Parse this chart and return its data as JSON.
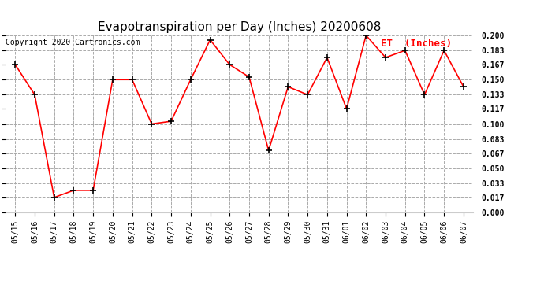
{
  "title": "Evapotranspiration per Day (Inches) 20200608",
  "copyright": "Copyright 2020 Cartronics.com",
  "legend_label": "ET  (Inches)",
  "dates": [
    "05/15",
    "05/16",
    "05/17",
    "05/18",
    "05/19",
    "05/20",
    "05/21",
    "05/22",
    "05/23",
    "05/24",
    "05/25",
    "05/26",
    "05/27",
    "05/28",
    "05/29",
    "05/30",
    "05/31",
    "06/01",
    "06/02",
    "06/03",
    "06/04",
    "06/05",
    "06/06",
    "06/07"
  ],
  "values": [
    0.167,
    0.133,
    0.017,
    0.025,
    0.025,
    0.15,
    0.15,
    0.1,
    0.103,
    0.15,
    0.195,
    0.167,
    0.153,
    0.07,
    0.142,
    0.133,
    0.175,
    0.117,
    0.2,
    0.175,
    0.183,
    0.133,
    0.183,
    0.142
  ],
  "ylim": [
    0.0,
    0.2
  ],
  "yticks": [
    0.0,
    0.017,
    0.033,
    0.05,
    0.067,
    0.083,
    0.1,
    0.117,
    0.133,
    0.15,
    0.167,
    0.183,
    0.2
  ],
  "line_color": "red",
  "marker_color": "black",
  "marker": "+",
  "background_color": "white",
  "grid_color": "#aaaaaa",
  "title_fontsize": 11,
  "copyright_fontsize": 7,
  "legend_color": "red",
  "legend_fontsize": 9,
  "tick_fontsize": 7,
  "axis_bg_color": "white"
}
